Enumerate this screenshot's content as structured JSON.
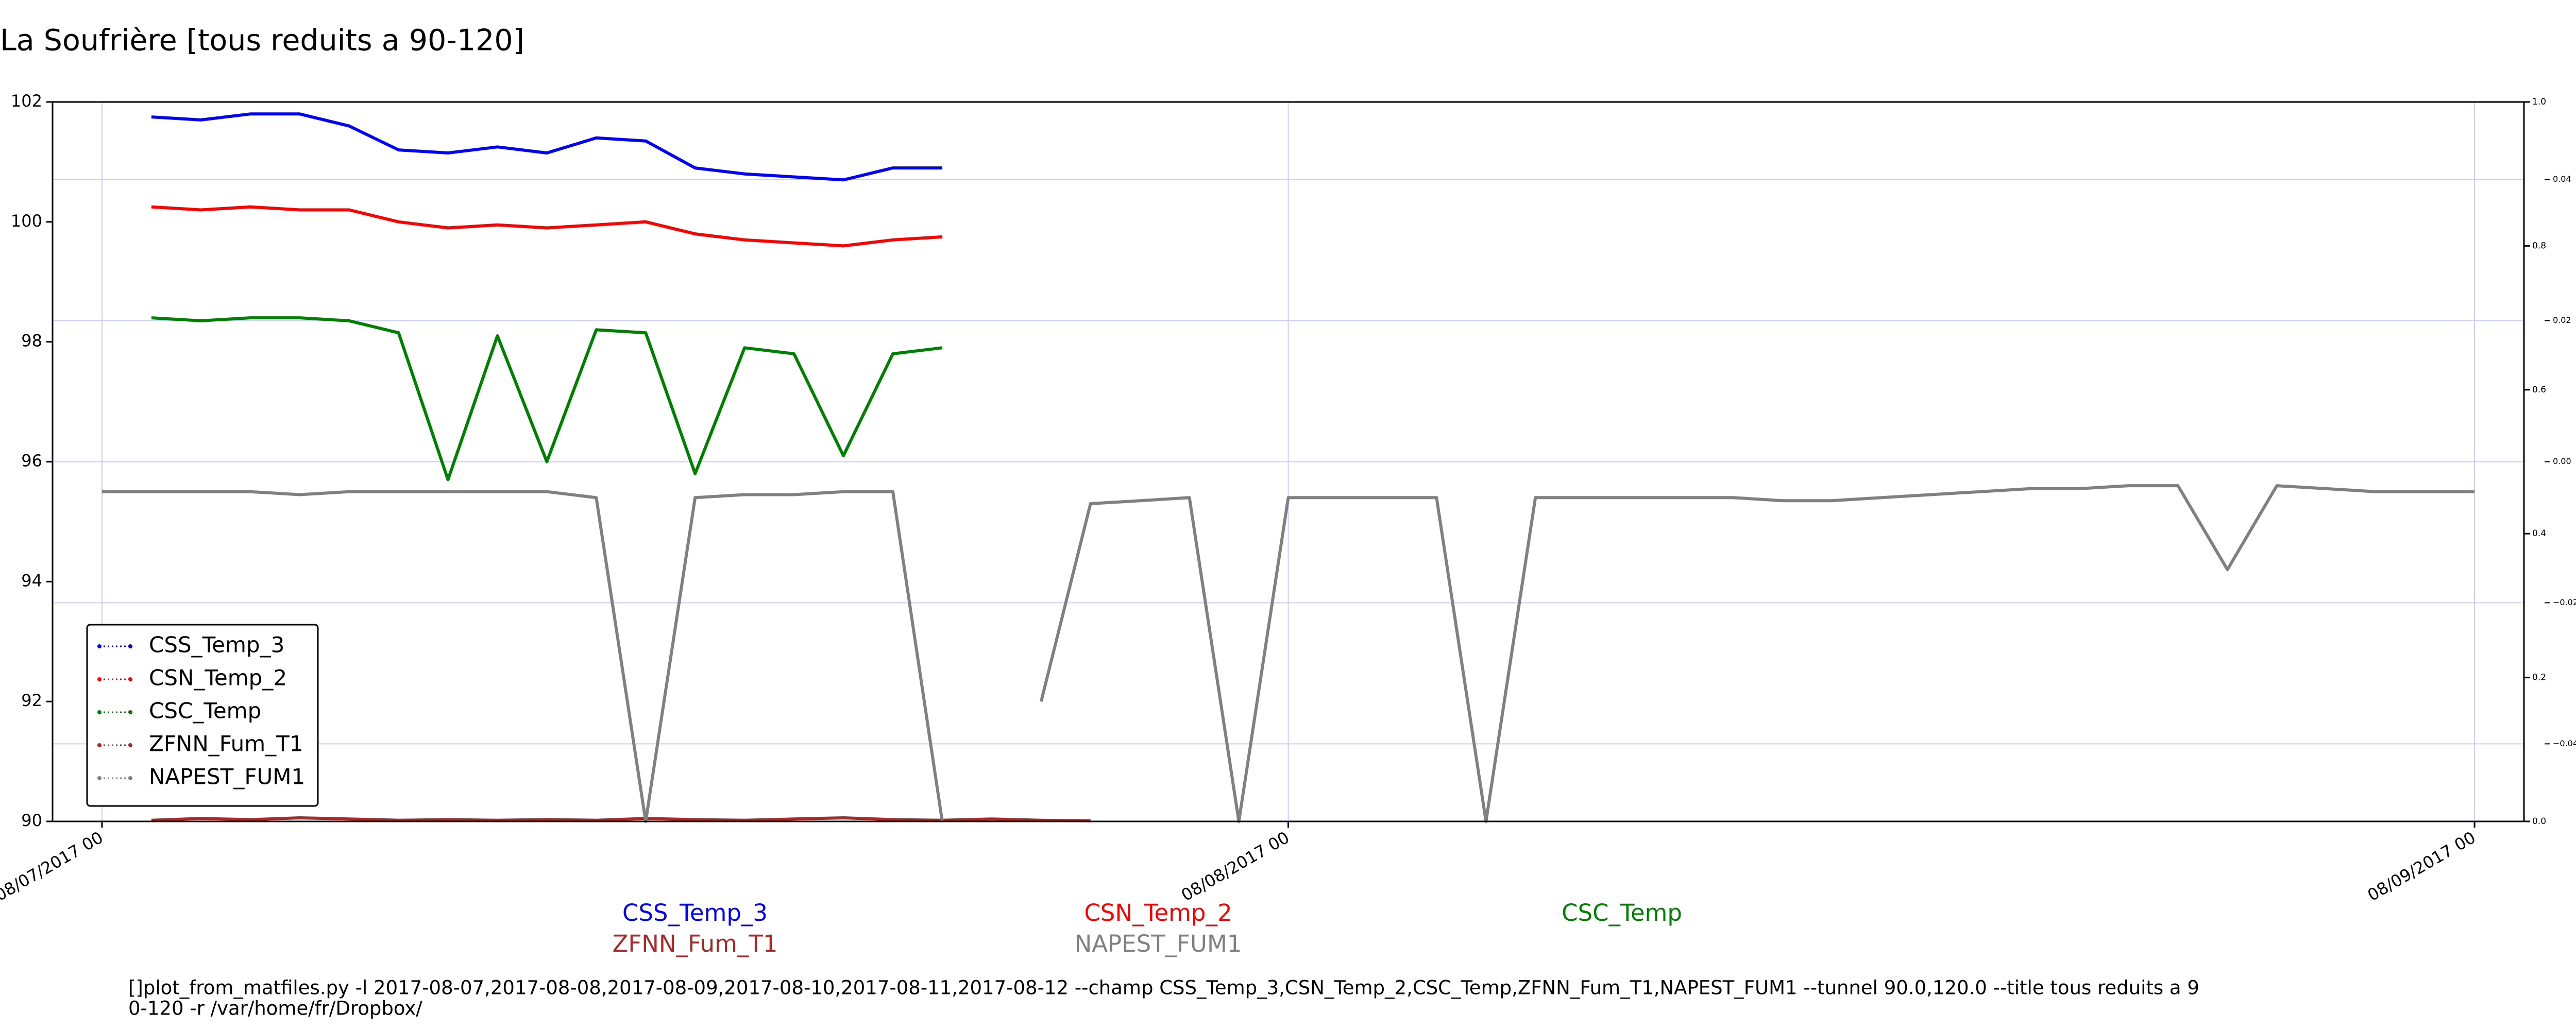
{
  "chart_data": {
    "type": "line",
    "title": "La Soufrière [tous reduits a 90-120]",
    "x": [
      "08/07/2017 00",
      "08/07/2017 01",
      "08/07/2017 02",
      "08/07/2017 03",
      "08/07/2017 04",
      "08/07/2017 05",
      "08/07/2017 06",
      "08/07/2017 07",
      "08/07/2017 08",
      "08/07/2017 09",
      "08/07/2017 10",
      "08/07/2017 11",
      "08/07/2017 12",
      "08/07/2017 13",
      "08/07/2017 14",
      "08/07/2017 15",
      "08/07/2017 16",
      "08/07/2017 17",
      "08/07/2017 18",
      "08/07/2017 19",
      "08/07/2017 20",
      "08/07/2017 21",
      "08/07/2017 22",
      "08/07/2017 23",
      "08/08/2017 00",
      "08/08/2017 01",
      "08/08/2017 02",
      "08/08/2017 03",
      "08/08/2017 04",
      "08/08/2017 05",
      "08/08/2017 06",
      "08/08/2017 07",
      "08/08/2017 08",
      "08/08/2017 09",
      "08/08/2017 10",
      "08/08/2017 11",
      "08/08/2017 12",
      "08/08/2017 13",
      "08/08/2017 14",
      "08/08/2017 15",
      "08/08/2017 16",
      "08/08/2017 17",
      "08/08/2017 18",
      "08/08/2017 19",
      "08/08/2017 20",
      "08/08/2017 21",
      "08/08/2017 22",
      "08/08/2017 23",
      "08/09/2017 00"
    ],
    "series": [
      {
        "name": "CSS_Temp_3",
        "color": "#0000ff",
        "values": [
          null,
          101.75,
          101.7,
          101.8,
          101.8,
          101.6,
          101.2,
          101.15,
          101.25,
          101.15,
          101.4,
          101.35,
          100.9,
          100.8,
          100.75,
          100.7,
          100.9,
          100.9,
          null,
          null,
          null,
          null,
          null,
          null,
          null,
          null,
          null,
          null,
          null,
          null,
          null,
          null,
          null,
          null,
          null,
          null,
          null,
          null,
          null,
          null,
          null,
          null,
          null,
          null,
          null,
          null,
          null,
          null,
          null
        ]
      },
      {
        "name": "CSN_Temp_2",
        "color": "#ff0000",
        "values": [
          null,
          100.25,
          100.2,
          100.25,
          100.2,
          100.2,
          100.0,
          99.9,
          99.95,
          99.9,
          99.95,
          100.0,
          99.8,
          99.7,
          99.65,
          99.6,
          99.7,
          99.75,
          null,
          null,
          null,
          null,
          null,
          null,
          null,
          null,
          null,
          null,
          null,
          null,
          null,
          null,
          null,
          null,
          null,
          null,
          null,
          null,
          null,
          null,
          null,
          null,
          null,
          null,
          null,
          null,
          null,
          null,
          null
        ]
      },
      {
        "name": "CSC_Temp",
        "color": "#008000",
        "values": [
          null,
          98.4,
          98.35,
          98.4,
          98.4,
          98.35,
          98.15,
          95.7,
          98.1,
          96.0,
          98.2,
          98.15,
          95.8,
          97.9,
          97.8,
          96.1,
          97.8,
          97.9,
          null,
          null,
          null,
          null,
          null,
          null,
          null,
          null,
          null,
          null,
          null,
          null,
          null,
          null,
          null,
          null,
          null,
          null,
          null,
          null,
          null,
          null,
          null,
          null,
          null,
          null,
          null,
          null,
          null,
          null,
          null
        ]
      },
      {
        "name": "ZFNN_Fum_T1",
        "color": "#a52a2a",
        "values": [
          null,
          90.02,
          90.05,
          90.03,
          90.06,
          90.04,
          90.02,
          90.03,
          90.02,
          90.03,
          90.02,
          90.05,
          90.03,
          90.02,
          90.04,
          90.06,
          90.03,
          90.02,
          90.04,
          90.02,
          90.01,
          null,
          null,
          null,
          null,
          null,
          null,
          null,
          null,
          null,
          null,
          null,
          null,
          null,
          null,
          null,
          null,
          null,
          null,
          null,
          null,
          null,
          null,
          null,
          null,
          null,
          null,
          null,
          null
        ]
      },
      {
        "name": "NAPEST_FUM1",
        "color": "#808080",
        "values": [
          95.5,
          95.5,
          95.5,
          95.5,
          95.45,
          95.5,
          95.5,
          95.5,
          95.5,
          95.5,
          95.4,
          90.0,
          95.4,
          95.45,
          95.45,
          95.5,
          95.5,
          90.0,
          null,
          92.0,
          95.3,
          95.35,
          95.4,
          90.0,
          95.4,
          95.4,
          95.4,
          95.4,
          90.0,
          95.4,
          95.4,
          95.4,
          95.4,
          95.4,
          95.35,
          95.35,
          95.4,
          95.45,
          95.5,
          95.55,
          95.55,
          95.6,
          95.6,
          94.2,
          95.6,
          95.55,
          95.5,
          95.5,
          95.5
        ]
      }
    ],
    "xlim": [
      "08/06/2017 23",
      "08/09/2017 01"
    ],
    "xticks": [
      "08/07/2017 00",
      "08/08/2017 00",
      "08/09/2017 00"
    ],
    "ylim": [
      90,
      102
    ],
    "yticks": [
      90,
      92,
      94,
      96,
      98,
      100,
      102
    ],
    "y2lim": [
      0,
      1
    ],
    "y2ticks": [
      {
        "value": 0,
        "label": "0.0"
      },
      0.2,
      0.4,
      0.6,
      0.8,
      {
        "value": 1,
        "label": "1.0"
      }
    ],
    "y3lim": [
      -0.051,
      0.051
    ],
    "y3ticks": [
      {
        "value": -0.04,
        "label": "−0.04"
      },
      {
        "value": -0.02,
        "label": "−0.02"
      },
      {
        "value": 0,
        "label": "0.00"
      },
      0.02,
      0.04
    ],
    "grid": true,
    "grid_color": "#ccccff",
    "legend": "lower left",
    "footnote_lines": [
      "[]plot_from_matfiles.py -l 2017-08-07,2017-08-08,2017-08-09,2017-08-10,2017-08-11,2017-08-12 --champ CSS_Temp_3,CSN_Temp_2,CSC_Temp,ZFNN_Fum_T1,NAPEST_FUM1 --tunnel 90.0,120.0 --title tous reduits a 9",
      "0-120 -r /var/home/fr/Dropbox/"
    ]
  }
}
